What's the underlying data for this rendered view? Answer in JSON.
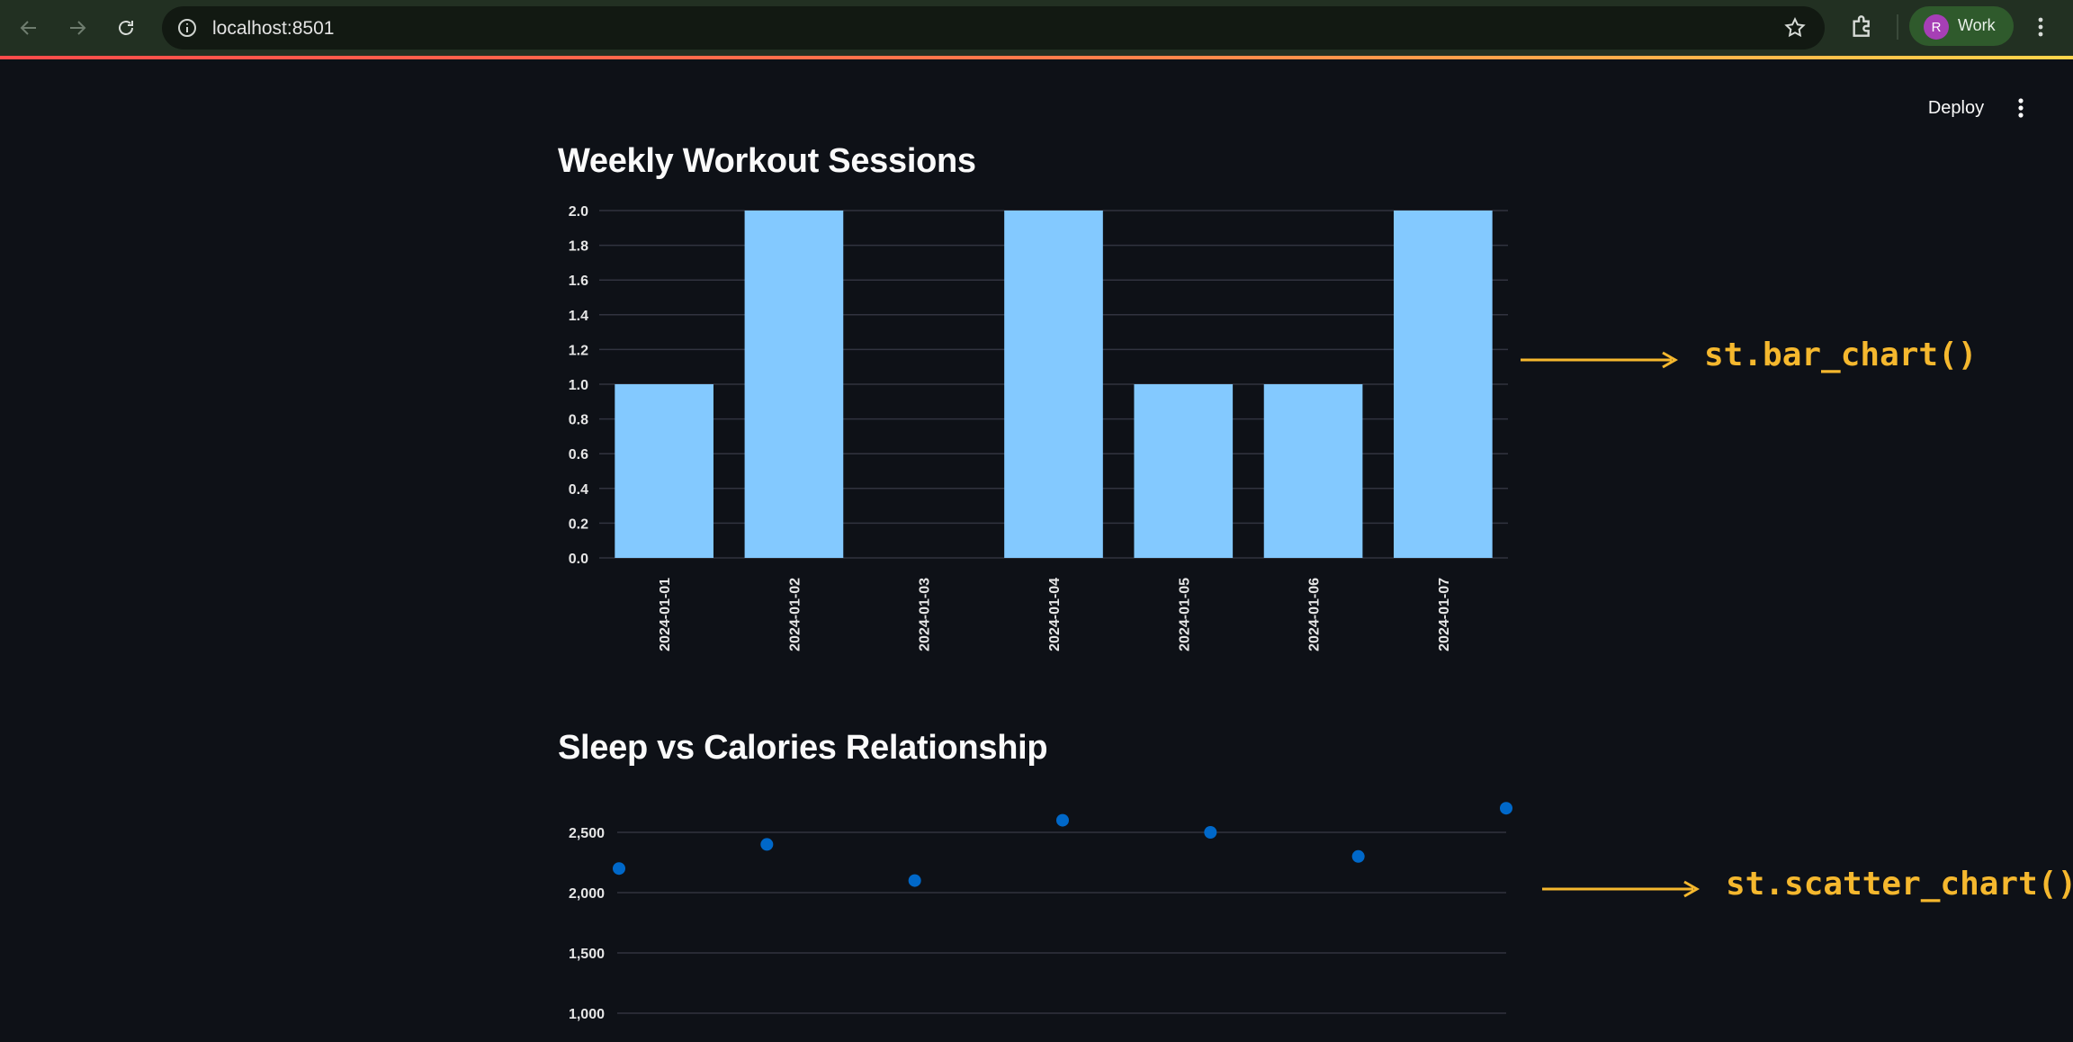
{
  "browser": {
    "url": "localhost:8501",
    "profile_initial": "R",
    "profile_label": "Work",
    "accent": "#223022"
  },
  "app_header": {
    "deploy_label": "Deploy"
  },
  "sections": {
    "bar_title": "Weekly Workout Sessions",
    "scatter_title": "Sleep vs Calories Relationship"
  },
  "annotations": {
    "bar": "st.bar_chart()",
    "scatter": "st.scatter_chart()",
    "color": "#f5b82e"
  },
  "chart_data": [
    {
      "type": "bar",
      "categories": [
        "2024-01-01",
        "2024-01-02",
        "2024-01-03",
        "2024-01-04",
        "2024-01-05",
        "2024-01-06",
        "2024-01-07"
      ],
      "values": [
        1,
        2,
        0,
        2,
        1,
        1,
        2
      ],
      "yticks": [
        "0.0",
        "0.2",
        "0.4",
        "0.6",
        "0.8",
        "1.0",
        "1.2",
        "1.4",
        "1.6",
        "1.8",
        "2.0"
      ],
      "ylim": [
        0,
        2
      ],
      "grid": true,
      "bar_color": "#83c9ff"
    },
    {
      "type": "scatter",
      "x": [
        1,
        2,
        3,
        4,
        5,
        6,
        7
      ],
      "y": [
        2200,
        2400,
        2100,
        2600,
        2500,
        2300,
        2700
      ],
      "yticks": [
        "1,000",
        "1,500",
        "2,000",
        "2,500"
      ],
      "ylim": [
        1000,
        2700
      ],
      "grid": true,
      "point_color": "#0068c9"
    }
  ]
}
